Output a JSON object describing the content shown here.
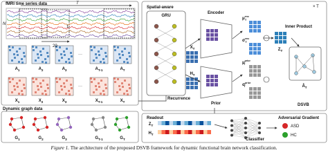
{
  "left": {
    "ts_title": "fMRI time series data",
    "ts_T": "T",
    "ts_N": "N",
    "window_start": "1",
    "window_len": "20",
    "adj": [
      {
        "base": "A",
        "sub": "1"
      },
      {
        "base": "A",
        "sub": "2"
      },
      {
        "base": "A",
        "sub": "3"
      },
      {
        "base": "A",
        "sub": "T-1"
      },
      {
        "base": "A",
        "sub": "T"
      }
    ],
    "feat": [
      {
        "base": "X",
        "sub": "1"
      },
      {
        "base": "X",
        "sub": "2"
      },
      {
        "base": "X",
        "sub": "3"
      },
      {
        "base": "X",
        "sub": "T-1"
      },
      {
        "base": "X",
        "sub": "T"
      }
    ],
    "ellipsis": "···",
    "dyn_title": "Dynamic graph data",
    "graphs": [
      {
        "base": "G",
        "sub": "1"
      },
      {
        "base": "G",
        "sub": "2"
      },
      {
        "base": "G",
        "sub": "3"
      },
      {
        "base": "G",
        "sub": "T-1"
      },
      {
        "base": "G",
        "sub": "T"
      }
    ]
  },
  "right": {
    "repeat": "× T",
    "spatial": "Spatial-aware",
    "gru": "GRU",
    "encoder": "Encoder",
    "prior": "Prior",
    "recurrence": "Recurrence",
    "x_t": {
      "base": "X",
      "sub": "T"
    },
    "h_t": {
      "base": "H",
      "sub": "T"
    },
    "mu_enc": {
      "base": "μ",
      "sup": "enc",
      "sub": "T"
    },
    "sigma_enc": {
      "base": "σ",
      "sup": "enc",
      "sub": "T"
    },
    "mu_prior": {
      "base": "μ",
      "sup": "prior",
      "sub": "T"
    },
    "sigma_prior": {
      "base": "σ",
      "sup": "prior",
      "sub": "T"
    },
    "z_t": {
      "base": "Z",
      "sub": "T"
    },
    "inner": "Inner Product",
    "a_hat": {
      "base": "Â",
      "sub": "T"
    },
    "name": "DSVB"
  },
  "bottom": {
    "readout": "Readout",
    "z_t": {
      "base": "Z",
      "sub": "T"
    },
    "h_t": {
      "base": "H",
      "sub": "T"
    },
    "classifier": "Classifier",
    "adv": "Adversarial Gradient",
    "asd": "ASD",
    "hc": "HC"
  },
  "caption": {
    "label": "Figure 1.",
    "text": "The architecture of the proposed DSVB framework for dynamic functional brain network classification."
  }
}
